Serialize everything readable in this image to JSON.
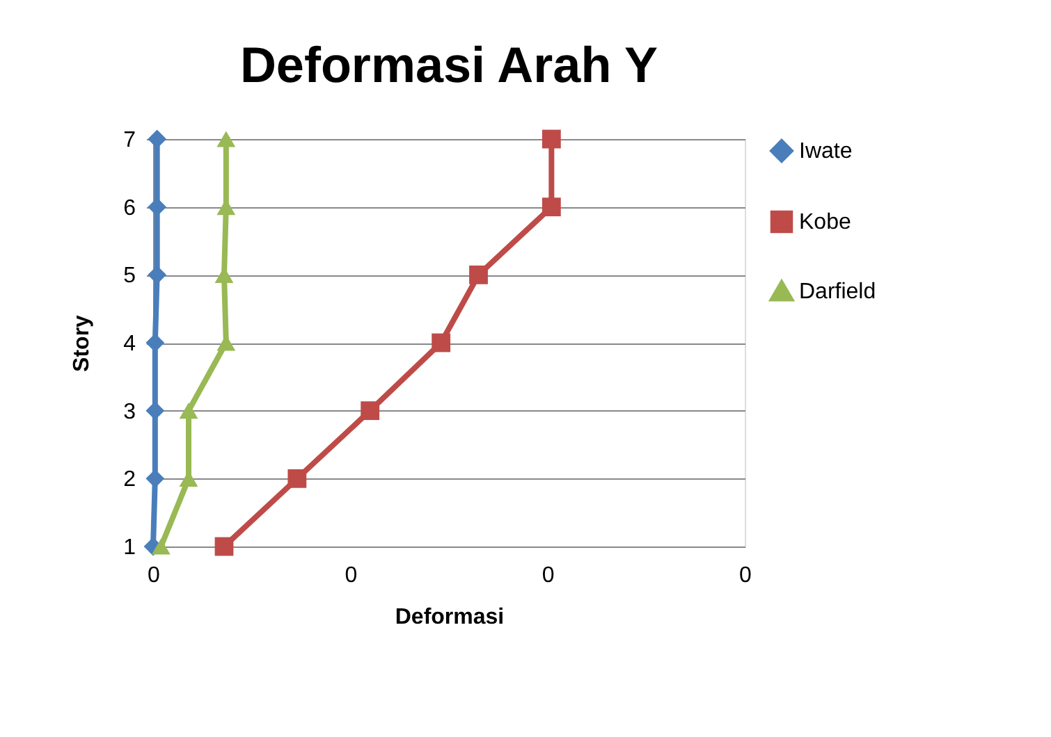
{
  "chart_data": {
    "type": "line",
    "title": "Deformasi Arah Y",
    "xlabel": "Deformasi",
    "ylabel": "Story",
    "series": [
      {
        "name": "Iwate",
        "color": "#4a7ebb",
        "marker": "diamond",
        "x": [
          0,
          0.001,
          0.001,
          0.001,
          0.002,
          0.002,
          0.002
        ],
        "values": [
          1,
          2,
          3,
          4,
          5,
          6,
          7
        ]
      },
      {
        "name": "Kobe",
        "color": "#be4b48",
        "marker": "square",
        "x": [
          0.036,
          0.073,
          0.11,
          0.146,
          0.165,
          0.202,
          0.202
        ],
        "values": [
          1,
          2,
          3,
          4,
          5,
          6,
          7
        ]
      },
      {
        "name": "Darfield",
        "color": "#98b954",
        "marker": "triangle",
        "x": [
          0.004,
          0.018,
          0.018,
          0.037,
          0.036,
          0.037,
          0.037
        ],
        "values": [
          1,
          2,
          3,
          4,
          5,
          6,
          7
        ]
      }
    ],
    "xlim": [
      0,
      0.3
    ],
    "xticks": [
      {
        "value": 0,
        "label": "0"
      },
      {
        "value": 0.1,
        "label": "0"
      },
      {
        "value": 0.2,
        "label": "0"
      },
      {
        "value": 0.3,
        "label": "0"
      }
    ],
    "ylim": [
      1,
      7
    ],
    "yticks": [
      1,
      2,
      3,
      4,
      5,
      6,
      7
    ],
    "grid": "y",
    "legend": "right",
    "line_style": "solid"
  }
}
